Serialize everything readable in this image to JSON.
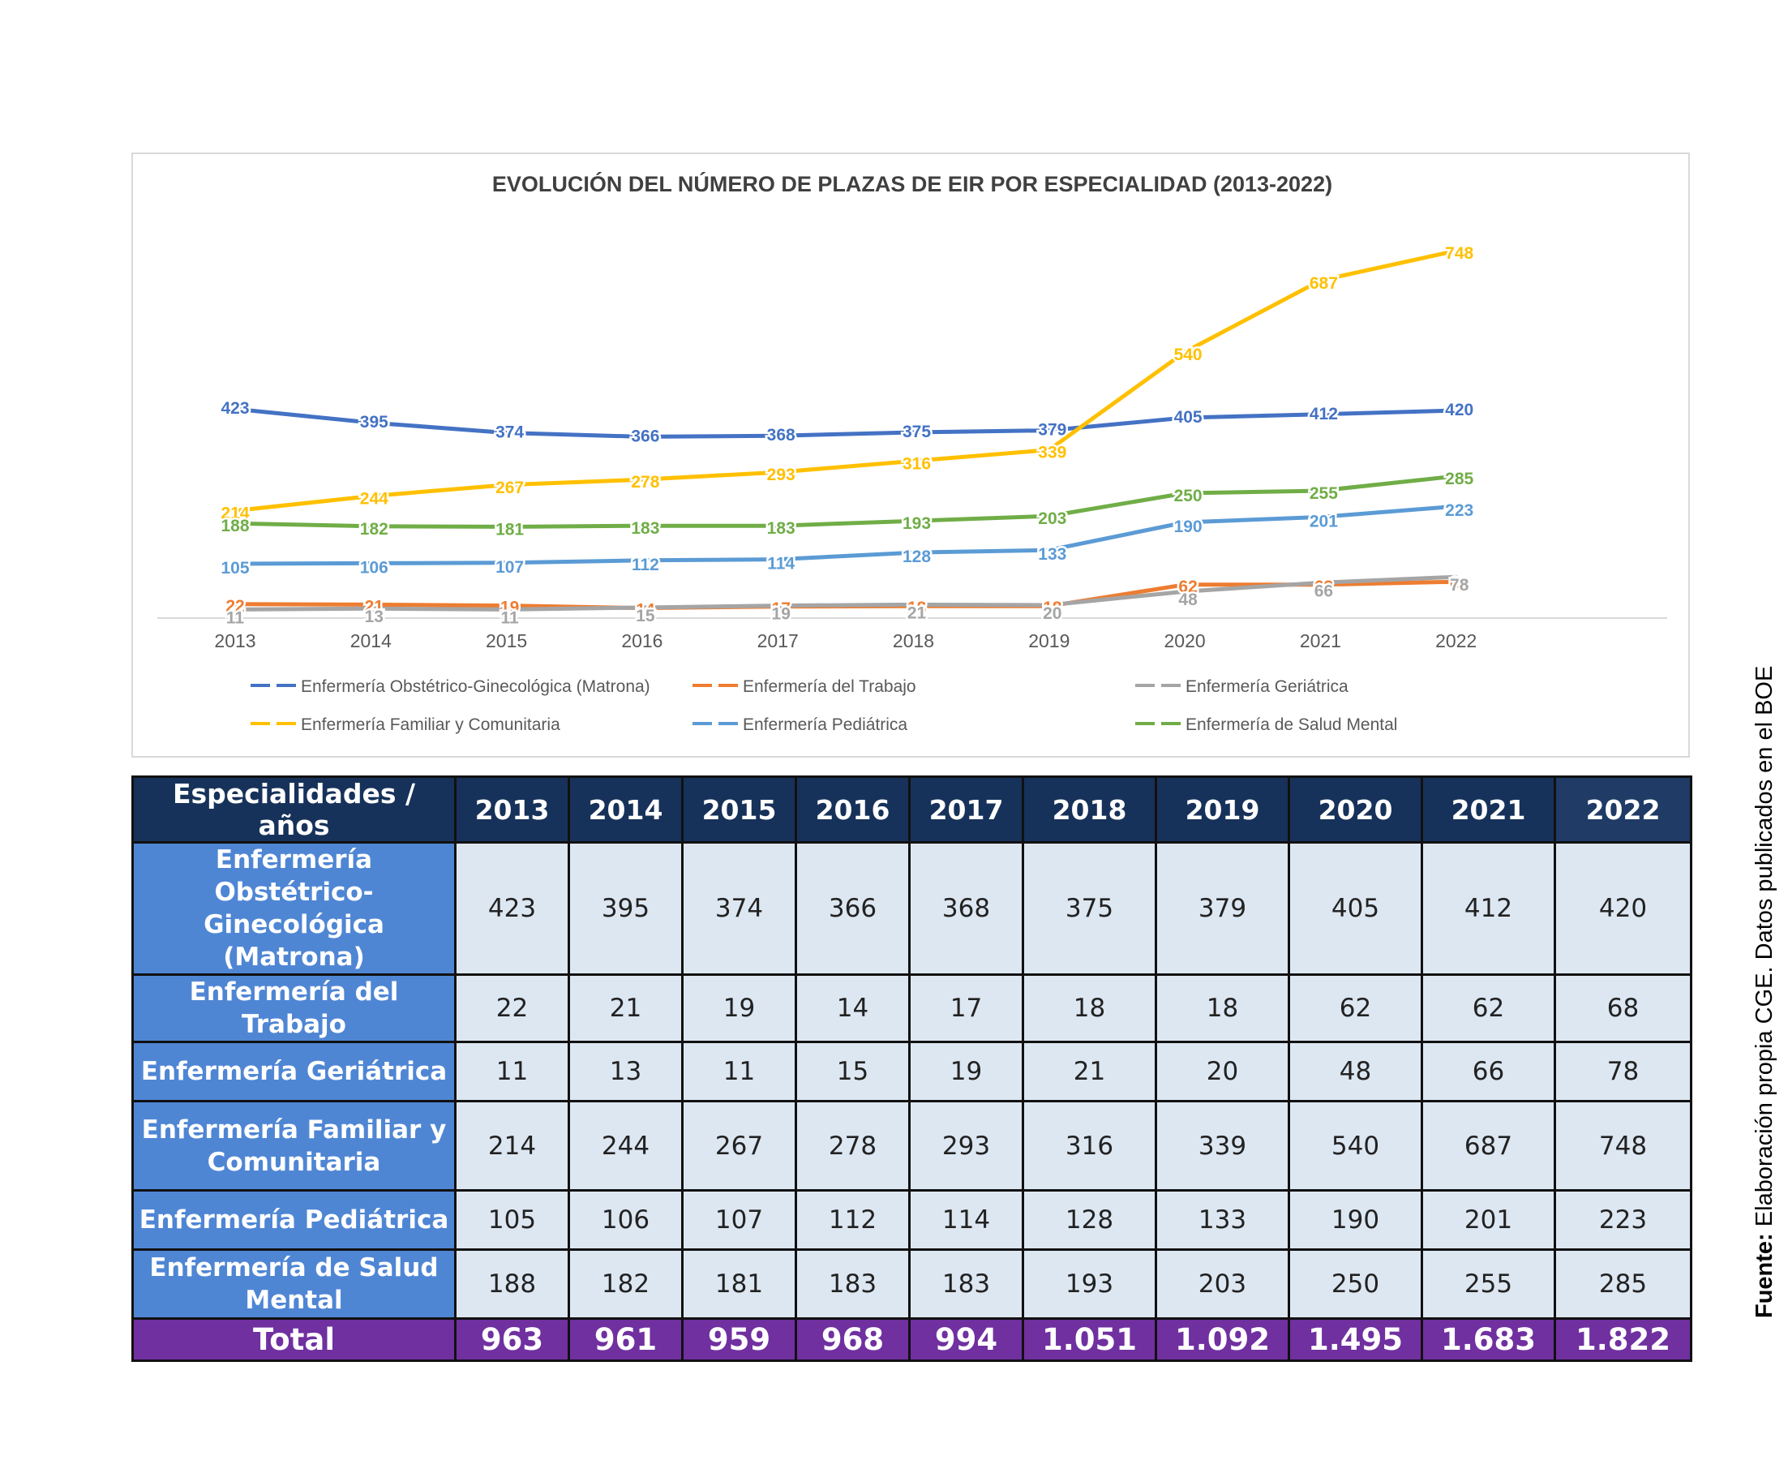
{
  "chart_data": {
    "type": "line",
    "title": "EVOLUCIÓN DEL NÚMERO DE PLAZAS DE EIR POR ESPECIALIDAD (2013-2022)",
    "categories": [
      "2013",
      "2014",
      "2015",
      "2016",
      "2017",
      "2018",
      "2019",
      "2020",
      "2021",
      "2022"
    ],
    "series": [
      {
        "name": "Enfermería Obstétrico-Ginecológica (Matrona)",
        "color": "#4472c4",
        "values": [
          423,
          395,
          374,
          366,
          368,
          375,
          379,
          405,
          412,
          420
        ]
      },
      {
        "name": "Enfermería del Trabajo",
        "color": "#ed7d31",
        "values": [
          22,
          21,
          19,
          14,
          17,
          18,
          18,
          62,
          62,
          68
        ]
      },
      {
        "name": "Enfermería Geriátrica",
        "color": "#a5a5a5",
        "values": [
          11,
          13,
          11,
          15,
          19,
          21,
          20,
          48,
          66,
          78
        ]
      },
      {
        "name": "Enfermería Familiar y Comunitaria",
        "color": "#ffc000",
        "values": [
          214,
          244,
          267,
          278,
          293,
          316,
          339,
          540,
          687,
          748
        ]
      },
      {
        "name": "Enfermería Pediátrica",
        "color": "#5b9bd5",
        "values": [
          105,
          106,
          107,
          112,
          114,
          128,
          133,
          190,
          201,
          223
        ]
      },
      {
        "name": "Enfermería de Salud Mental",
        "color": "#70ad47",
        "values": [
          188,
          182,
          181,
          183,
          183,
          193,
          203,
          250,
          255,
          285
        ]
      }
    ],
    "ylim": [
      0,
      800
    ],
    "grid": false,
    "legend_position": "bottom"
  },
  "table": {
    "header_label": "Especialidades / años",
    "years": [
      "2013",
      "2014",
      "2015",
      "2016",
      "2017",
      "2018",
      "2019",
      "2020",
      "2021",
      "2022"
    ],
    "rows": [
      {
        "label": "Enfermería Obstétrico-Ginecológica (Matrona)",
        "values": [
          "423",
          "395",
          "374",
          "366",
          "368",
          "375",
          "379",
          "405",
          "412",
          "420"
        ]
      },
      {
        "label": "Enfermería del Trabajo",
        "values": [
          "22",
          "21",
          "19",
          "14",
          "17",
          "18",
          "18",
          "62",
          "62",
          "68"
        ]
      },
      {
        "label": "Enfermería Geriátrica",
        "values": [
          "11",
          "13",
          "11",
          "15",
          "19",
          "21",
          "20",
          "48",
          "66",
          "78"
        ]
      },
      {
        "label": "Enfermería Familiar y Comunitaria",
        "values": [
          "214",
          "244",
          "267",
          "278",
          "293",
          "316",
          "339",
          "540",
          "687",
          "748"
        ]
      },
      {
        "label": "Enfermería Pediátrica",
        "values": [
          "105",
          "106",
          "107",
          "112",
          "114",
          "128",
          "133",
          "190",
          "201",
          "223"
        ]
      },
      {
        "label": "Enfermería de Salud Mental",
        "values": [
          "188",
          "182",
          "181",
          "183",
          "183",
          "193",
          "203",
          "250",
          "255",
          "285"
        ]
      }
    ],
    "total_label": "Total",
    "totals": [
      "963",
      "961",
      "959",
      "968",
      "994",
      "1.051",
      "1.092",
      "1.495",
      "1.683",
      "1.822"
    ]
  },
  "source": {
    "label": "Fuente:",
    "text": "Elaboración propia CGE. Datos publicados en el BOE"
  }
}
